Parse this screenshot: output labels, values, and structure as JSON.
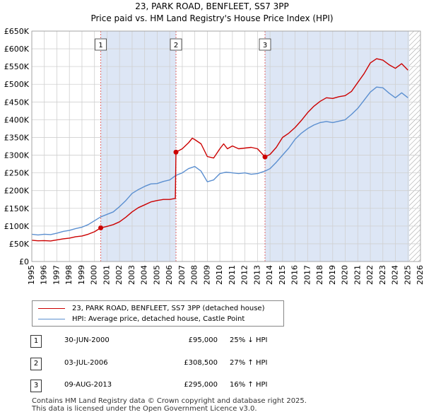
{
  "chart_data": {
    "type": "line",
    "title": "23, PARK ROAD, BENFLEET, SS7 3PP",
    "subtitle": "Price paid vs. HM Land Registry's House Price Index (HPI)",
    "xlim": [
      1995,
      2026
    ],
    "ylim": [
      0,
      650000
    ],
    "x_ticks": [
      "1995",
      "1996",
      "1997",
      "1998",
      "1999",
      "2000",
      "2001",
      "2002",
      "2003",
      "2004",
      "2005",
      "2006",
      "2007",
      "2008",
      "2009",
      "2010",
      "2011",
      "2012",
      "2013",
      "2014",
      "2015",
      "2016",
      "2017",
      "2018",
      "2019",
      "2020",
      "2021",
      "2022",
      "2023",
      "2024",
      "2025",
      "2026"
    ],
    "y_ticks": [
      {
        "value": 0,
        "label": "£0"
      },
      {
        "value": 50000,
        "label": "£50K"
      },
      {
        "value": 100000,
        "label": "£100K"
      },
      {
        "value": 150000,
        "label": "£150K"
      },
      {
        "value": 200000,
        "label": "£200K"
      },
      {
        "value": 250000,
        "label": "£250K"
      },
      {
        "value": 300000,
        "label": "£300K"
      },
      {
        "value": 350000,
        "label": "£350K"
      },
      {
        "value": 400000,
        "label": "£400K"
      },
      {
        "value": 450000,
        "label": "£450K"
      },
      {
        "value": 500000,
        "label": "£500K"
      },
      {
        "value": 550000,
        "label": "£550K"
      },
      {
        "value": 600000,
        "label": "£600K"
      },
      {
        "value": 650000,
        "label": "£650K"
      }
    ],
    "grid": true,
    "colors": {
      "property": "#cc0000",
      "hpi": "#5b8fd0",
      "shade": "#dde6f5",
      "marker_line": "#e06666",
      "hatch": "#999999"
    },
    "shaded_spans": [
      [
        2000.5,
        2006.5
      ],
      [
        2013.6,
        2025.1
      ]
    ],
    "hatched_from": 2025.1,
    "series": [
      {
        "name": "23, PARK ROAD, BENFLEET, SS7 3PP (detached house)",
        "key": "property",
        "points": [
          [
            1995.0,
            60000
          ],
          [
            1995.5,
            58500
          ],
          [
            1996.0,
            59000
          ],
          [
            1996.5,
            58000
          ],
          [
            1997.0,
            61000
          ],
          [
            1997.5,
            64000
          ],
          [
            1998.0,
            66000
          ],
          [
            1998.5,
            70000
          ],
          [
            1999.0,
            72000
          ],
          [
            1999.5,
            77000
          ],
          [
            2000.0,
            84000
          ],
          [
            2000.5,
            95000
          ],
          [
            2001.0,
            99000
          ],
          [
            2001.5,
            104000
          ],
          [
            2002.0,
            112000
          ],
          [
            2002.5,
            125000
          ],
          [
            2003.0,
            140000
          ],
          [
            2003.5,
            152000
          ],
          [
            2004.0,
            160000
          ],
          [
            2004.5,
            168000
          ],
          [
            2005.0,
            172000
          ],
          [
            2005.5,
            175000
          ],
          [
            2006.0,
            175000
          ],
          [
            2006.45,
            178000
          ],
          [
            2006.5,
            308500
          ],
          [
            2007.0,
            318000
          ],
          [
            2007.5,
            335000
          ],
          [
            2007.8,
            348000
          ],
          [
            2008.0,
            344000
          ],
          [
            2008.5,
            332000
          ],
          [
            2009.0,
            296000
          ],
          [
            2009.5,
            292000
          ],
          [
            2010.0,
            318000
          ],
          [
            2010.3,
            332000
          ],
          [
            2010.6,
            318000
          ],
          [
            2011.0,
            326000
          ],
          [
            2011.5,
            318000
          ],
          [
            2012.0,
            320000
          ],
          [
            2012.5,
            322000
          ],
          [
            2013.0,
            318000
          ],
          [
            2013.6,
            295000
          ],
          [
            2014.0,
            302000
          ],
          [
            2014.5,
            322000
          ],
          [
            2015.0,
            350000
          ],
          [
            2015.5,
            362000
          ],
          [
            2016.0,
            378000
          ],
          [
            2016.5,
            398000
          ],
          [
            2017.0,
            420000
          ],
          [
            2017.5,
            438000
          ],
          [
            2018.0,
            452000
          ],
          [
            2018.5,
            462000
          ],
          [
            2019.0,
            460000
          ],
          [
            2019.5,
            465000
          ],
          [
            2020.0,
            468000
          ],
          [
            2020.5,
            480000
          ],
          [
            2021.0,
            505000
          ],
          [
            2021.5,
            530000
          ],
          [
            2022.0,
            560000
          ],
          [
            2022.5,
            572000
          ],
          [
            2023.0,
            568000
          ],
          [
            2023.5,
            555000
          ],
          [
            2024.0,
            545000
          ],
          [
            2024.5,
            558000
          ],
          [
            2025.0,
            540000
          ]
        ]
      },
      {
        "name": "HPI: Average price, detached house, Castle Point",
        "key": "hpi",
        "points": [
          [
            1995.0,
            77000
          ],
          [
            1995.5,
            75000
          ],
          [
            1996.0,
            77000
          ],
          [
            1996.5,
            76000
          ],
          [
            1997.0,
            80000
          ],
          [
            1997.5,
            85000
          ],
          [
            1998.0,
            88000
          ],
          [
            1998.5,
            93000
          ],
          [
            1999.0,
            97000
          ],
          [
            1999.5,
            104000
          ],
          [
            2000.0,
            115000
          ],
          [
            2000.5,
            126000
          ],
          [
            2001.0,
            133000
          ],
          [
            2001.5,
            140000
          ],
          [
            2002.0,
            155000
          ],
          [
            2002.5,
            172000
          ],
          [
            2003.0,
            192000
          ],
          [
            2003.5,
            203000
          ],
          [
            2004.0,
            212000
          ],
          [
            2004.5,
            219000
          ],
          [
            2005.0,
            220000
          ],
          [
            2005.5,
            226000
          ],
          [
            2006.0,
            230000
          ],
          [
            2006.5,
            243000
          ],
          [
            2007.0,
            250000
          ],
          [
            2007.5,
            262000
          ],
          [
            2008.0,
            268000
          ],
          [
            2008.5,
            255000
          ],
          [
            2009.0,
            225000
          ],
          [
            2009.5,
            230000
          ],
          [
            2010.0,
            248000
          ],
          [
            2010.5,
            252000
          ],
          [
            2011.0,
            250000
          ],
          [
            2011.5,
            248000
          ],
          [
            2012.0,
            250000
          ],
          [
            2012.5,
            246000
          ],
          [
            2013.0,
            248000
          ],
          [
            2013.6,
            255000
          ],
          [
            2014.0,
            262000
          ],
          [
            2014.5,
            280000
          ],
          [
            2015.0,
            300000
          ],
          [
            2015.5,
            320000
          ],
          [
            2016.0,
            345000
          ],
          [
            2016.5,
            362000
          ],
          [
            2017.0,
            375000
          ],
          [
            2017.5,
            385000
          ],
          [
            2018.0,
            392000
          ],
          [
            2018.5,
            395000
          ],
          [
            2019.0,
            392000
          ],
          [
            2019.5,
            396000
          ],
          [
            2020.0,
            400000
          ],
          [
            2020.5,
            415000
          ],
          [
            2021.0,
            432000
          ],
          [
            2021.5,
            455000
          ],
          [
            2022.0,
            478000
          ],
          [
            2022.5,
            492000
          ],
          [
            2023.0,
            490000
          ],
          [
            2023.5,
            475000
          ],
          [
            2024.0,
            462000
          ],
          [
            2024.5,
            476000
          ],
          [
            2025.0,
            462000
          ]
        ]
      }
    ],
    "sales": [
      {
        "label": "1",
        "x": 2000.5,
        "price": 95000
      },
      {
        "label": "2",
        "x": 2006.5,
        "price": 308500
      },
      {
        "label": "3",
        "x": 2013.6,
        "price": 295000
      }
    ]
  },
  "legend": {
    "property": "23, PARK ROAD, BENFLEET, SS7 3PP (detached house)",
    "hpi": "HPI: Average price, detached house, Castle Point"
  },
  "table": [
    {
      "num": "1",
      "date": "30-JUN-2000",
      "price": "£95,000",
      "hpi": "25% ↓ HPI"
    },
    {
      "num": "2",
      "date": "03-JUL-2006",
      "price": "£308,500",
      "hpi": "27% ↑ HPI"
    },
    {
      "num": "3",
      "date": "09-AUG-2013",
      "price": "£295,000",
      "hpi": "16% ↑ HPI"
    }
  ],
  "footer": {
    "line1": "Contains HM Land Registry data © Crown copyright and database right 2025.",
    "line2": "This data is licensed under the Open Government Licence v3.0."
  }
}
